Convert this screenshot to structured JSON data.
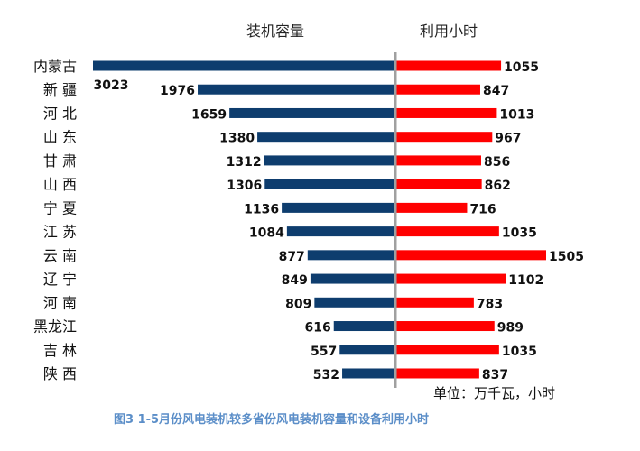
{
  "chart_data": {
    "type": "bar",
    "orientation": "horizontal-butterfly",
    "categories": [
      "内蒙古",
      "新 疆",
      "河 北",
      "山 东",
      "甘 肃",
      "山 西",
      "宁 夏",
      "江 苏",
      "云 南",
      "辽 宁",
      "河 南",
      "黑龙江",
      "吉 林",
      "陕 西"
    ],
    "series": [
      {
        "name": "装机容量",
        "color": "#0e3d6e",
        "direction": "left",
        "values": [
          3023,
          1976,
          1659,
          1380,
          1312,
          1306,
          1136,
          1084,
          877,
          849,
          809,
          616,
          557,
          532
        ]
      },
      {
        "name": "利用小时",
        "color": "#ff0000",
        "direction": "right",
        "values": [
          1055,
          847,
          1013,
          967,
          856,
          862,
          716,
          1035,
          1505,
          1102,
          783,
          989,
          1035,
          837
        ]
      }
    ],
    "unit_note": "单位：万千瓦，小时",
    "divider_color": "#a0a0a0"
  },
  "caption": "图3  1-5月份风电装机较多省份风电装机容量和设备利用小时"
}
